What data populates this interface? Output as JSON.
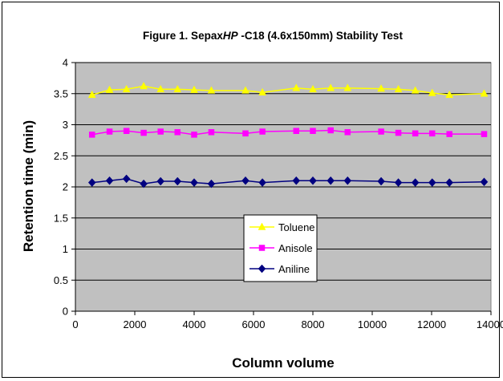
{
  "chart_data": {
    "type": "line",
    "title_parts": [
      {
        "text": "Figure 1. Sepax",
        "italic": false
      },
      {
        "text": "HP",
        "italic": true
      },
      {
        "text": " -C18 (4.6x150mm) Stability Test",
        "italic": false
      }
    ],
    "xlabel": "Column volume",
    "ylabel": "Retention time (min)",
    "xlim": [
      0,
      14000
    ],
    "ylim": [
      0,
      4
    ],
    "xticks": [
      0,
      2000,
      4000,
      6000,
      8000,
      10000,
      12000,
      14000
    ],
    "yticks": [
      0,
      0.5,
      1,
      1.5,
      2,
      2.5,
      3,
      3.5,
      4
    ],
    "grid": "horizontal",
    "plot_background": "#c0c0c0",
    "legend_position": "center-left",
    "series": [
      {
        "name": "Toluene",
        "color": "#ffff00",
        "marker": "triangle",
        "x": [
          560,
          1150,
          1720,
          2300,
          2870,
          3440,
          4000,
          4580,
          5730,
          6300,
          7440,
          8000,
          8600,
          9170,
          10300,
          10880,
          11450,
          12020,
          12600,
          13770
        ],
        "y": [
          3.48,
          3.56,
          3.57,
          3.62,
          3.57,
          3.57,
          3.56,
          3.55,
          3.55,
          3.52,
          3.59,
          3.57,
          3.59,
          3.59,
          3.58,
          3.57,
          3.55,
          3.51,
          3.48,
          3.5
        ]
      },
      {
        "name": "Anisole",
        "color": "#ff00ff",
        "marker": "square",
        "x": [
          560,
          1150,
          1720,
          2300,
          2870,
          3440,
          4000,
          4580,
          5730,
          6300,
          7440,
          8000,
          8600,
          9170,
          10300,
          10880,
          11450,
          12020,
          12600,
          13770
        ],
        "y": [
          2.84,
          2.89,
          2.9,
          2.87,
          2.89,
          2.88,
          2.84,
          2.88,
          2.86,
          2.89,
          2.9,
          2.9,
          2.91,
          2.88,
          2.89,
          2.87,
          2.86,
          2.86,
          2.85,
          2.85
        ]
      },
      {
        "name": "Aniline",
        "color": "#000080",
        "marker": "diamond",
        "x": [
          560,
          1150,
          1720,
          2300,
          2870,
          3440,
          4000,
          4580,
          5730,
          6300,
          7440,
          8000,
          8600,
          9170,
          10300,
          10880,
          11450,
          12020,
          12600,
          13770
        ],
        "y": [
          2.07,
          2.1,
          2.13,
          2.05,
          2.09,
          2.09,
          2.07,
          2.05,
          2.1,
          2.07,
          2.1,
          2.1,
          2.1,
          2.1,
          2.09,
          2.07,
          2.07,
          2.07,
          2.07,
          2.08
        ]
      }
    ]
  }
}
